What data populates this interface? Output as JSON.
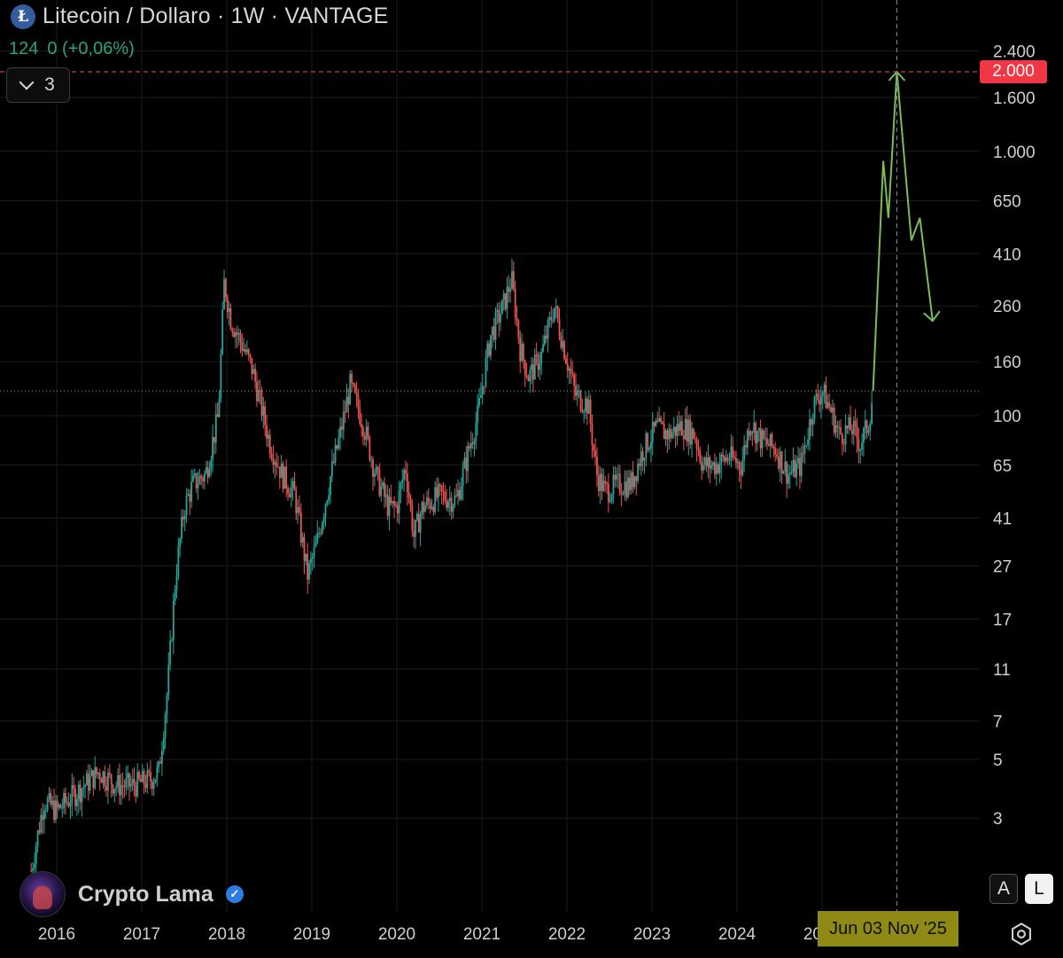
{
  "header": {
    "coin_logo": "Ł",
    "title": "Litecoin / Dollaro · 1W · VANTAGE",
    "price_value": "124",
    "price_change": "0 (+0,06%)",
    "collapse_count": "3"
  },
  "author": {
    "name": "Crypto Lama",
    "verified_mark": "✓"
  },
  "axis_buttons": {
    "auto": "A",
    "log": "L"
  },
  "crosshair": {
    "price_label": "2.000",
    "date_label": "Jun 03 Nov '25"
  },
  "icons": {
    "settings": "settings-icon",
    "chevron": "chevron-down-icon",
    "verified": "verified-icon"
  },
  "colors": {
    "up": "#26a69a",
    "down": "#ef5350",
    "forecast": "#7dbb5a",
    "badge_red": "#f23645",
    "badge_date": "#8f8a16"
  },
  "chart_data": {
    "type": "candlestick",
    "symbol": "Litecoin / Dollaro",
    "interval": "1W",
    "exchange": "VANTAGE",
    "y_scale": "log",
    "grid": true,
    "y_ticks": [
      {
        "value": 2400,
        "label": "2.400"
      },
      {
        "value": 1600,
        "label": "1.600"
      },
      {
        "value": 1000,
        "label": "1.000"
      },
      {
        "value": 650,
        "label": "650"
      },
      {
        "value": 410,
        "label": "410"
      },
      {
        "value": 260,
        "label": "260"
      },
      {
        "value": 160,
        "label": "160"
      },
      {
        "value": 100,
        "label": "100"
      },
      {
        "value": 65,
        "label": "65"
      },
      {
        "value": 41,
        "label": "41"
      },
      {
        "value": 27,
        "label": "27"
      },
      {
        "value": 17,
        "label": "17"
      },
      {
        "value": 11,
        "label": "11"
      },
      {
        "value": 7,
        "label": "7"
      },
      {
        "value": 5,
        "label": "5"
      },
      {
        "value": 3,
        "label": "3"
      }
    ],
    "x_ticks": [
      "2016",
      "2017",
      "2018",
      "2019",
      "2020",
      "2021",
      "2022",
      "2023",
      "2024",
      "2025"
    ],
    "current_price": 124,
    "target_level": 2000,
    "price_path": [
      [
        2015.7,
        1.9
      ],
      [
        2015.85,
        3.5
      ],
      [
        2016.0,
        3.2
      ],
      [
        2016.25,
        3.8
      ],
      [
        2016.5,
        4.5
      ],
      [
        2016.7,
        4.0
      ],
      [
        2016.9,
        4.0
      ],
      [
        2017.1,
        4.2
      ],
      [
        2017.2,
        4.5
      ],
      [
        2017.3,
        9
      ],
      [
        2017.4,
        25
      ],
      [
        2017.5,
        45
      ],
      [
        2017.6,
        55
      ],
      [
        2017.75,
        60
      ],
      [
        2017.9,
        100
      ],
      [
        2017.97,
        320
      ],
      [
        2018.05,
        230
      ],
      [
        2018.2,
        180
      ],
      [
        2018.3,
        150
      ],
      [
        2018.4,
        110
      ],
      [
        2018.5,
        80
      ],
      [
        2018.65,
        60
      ],
      [
        2018.8,
        50
      ],
      [
        2018.95,
        25
      ],
      [
        2019.05,
        32
      ],
      [
        2019.2,
        55
      ],
      [
        2019.35,
        90
      ],
      [
        2019.45,
        130
      ],
      [
        2019.6,
        95
      ],
      [
        2019.75,
        60
      ],
      [
        2019.9,
        45
      ],
      [
        2020.0,
        45
      ],
      [
        2020.1,
        65
      ],
      [
        2020.2,
        35
      ],
      [
        2020.3,
        45
      ],
      [
        2020.5,
        50
      ],
      [
        2020.7,
        48
      ],
      [
        2020.85,
        75
      ],
      [
        2020.95,
        100
      ],
      [
        2021.1,
        200
      ],
      [
        2021.25,
        260
      ],
      [
        2021.35,
        330
      ],
      [
        2021.45,
        180
      ],
      [
        2021.55,
        140
      ],
      [
        2021.7,
        170
      ],
      [
        2021.85,
        260
      ],
      [
        2021.95,
        190
      ],
      [
        2022.1,
        120
      ],
      [
        2022.25,
        110
      ],
      [
        2022.35,
        60
      ],
      [
        2022.45,
        52
      ],
      [
        2022.6,
        55
      ],
      [
        2022.75,
        55
      ],
      [
        2022.9,
        75
      ],
      [
        2023.05,
        90
      ],
      [
        2023.2,
        85
      ],
      [
        2023.35,
        92
      ],
      [
        2023.5,
        85
      ],
      [
        2023.6,
        65
      ],
      [
        2023.75,
        65
      ],
      [
        2023.9,
        70
      ],
      [
        2024.05,
        65
      ],
      [
        2024.15,
        95
      ],
      [
        2024.3,
        80
      ],
      [
        2024.45,
        75
      ],
      [
        2024.6,
        60
      ],
      [
        2024.75,
        65
      ],
      [
        2024.9,
        110
      ],
      [
        2025.0,
        125
      ],
      [
        2025.1,
        105
      ],
      [
        2025.2,
        85
      ],
      [
        2025.35,
        90
      ],
      [
        2025.45,
        78
      ],
      [
        2025.55,
        95
      ],
      [
        2025.6,
        124
      ]
    ],
    "forecast_path": [
      [
        2025.6,
        124
      ],
      [
        2025.72,
        920
      ],
      [
        2025.78,
        560
      ],
      [
        2025.88,
        2000
      ],
      [
        2026.05,
        460
      ],
      [
        2026.15,
        560
      ],
      [
        2026.3,
        230
      ]
    ]
  }
}
